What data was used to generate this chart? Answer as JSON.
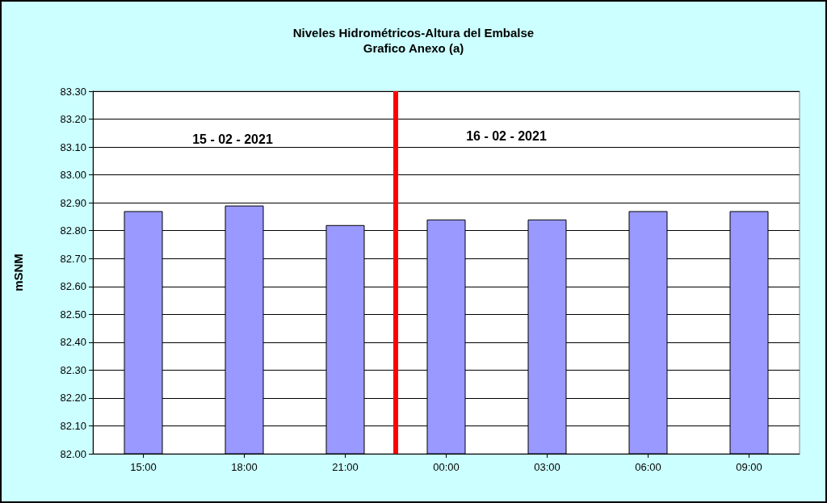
{
  "chart_data": {
    "type": "bar",
    "title": "Niveles Hidrométricos-Altura del Embalse",
    "subtitle": "Grafico Anexo (a)",
    "ylabel": "mSNM",
    "x": [
      "2021-02-15T15:00",
      "2021-02-15T18:00",
      "2021-02-15T21:00",
      "2021-02-16T00:00",
      "2021-02-16T03:00",
      "2021-02-16T06:00",
      "2021-02-16T09:00"
    ],
    "values": [
      82.87,
      82.89,
      82.82,
      82.84,
      82.84,
      82.87,
      82.87
    ],
    "color": "#9999ff",
    "xlim": [
      "2021-02-15T13:30",
      "2021-02-16T10:30"
    ],
    "xticks": [
      {
        "value": "2021-02-15T15:00",
        "label": "15:00"
      },
      {
        "value": "2021-02-15T18:00",
        "label": "18:00"
      },
      {
        "value": "2021-02-15T21:00",
        "label": "21:00"
      },
      {
        "value": "2021-02-16T00:00",
        "label": "00:00"
      },
      {
        "value": "2021-02-16T03:00",
        "label": "03:00"
      },
      {
        "value": "2021-02-16T06:00",
        "label": "06:00"
      },
      {
        "value": "2021-02-16T09:00",
        "label": "09:00"
      }
    ],
    "ylim": [
      82.0,
      83.3
    ],
    "yticks": [
      {
        "value": 82.0,
        "label": "82.00"
      },
      {
        "value": 82.1,
        "label": "82.10"
      },
      {
        "value": 82.2,
        "label": "82.20"
      },
      {
        "value": 82.3,
        "label": "82.30"
      },
      {
        "value": 82.4,
        "label": "82.40"
      },
      {
        "value": 82.5,
        "label": "82.50"
      },
      {
        "value": 82.6,
        "label": "82.60"
      },
      {
        "value": 82.7,
        "label": "82.70"
      },
      {
        "value": 82.8,
        "label": "82.80"
      },
      {
        "value": 82.9,
        "label": "82.90"
      },
      {
        "value": 83.0,
        "label": "83.00"
      },
      {
        "value": 83.1,
        "label": "83.10"
      },
      {
        "value": 83.2,
        "label": "83.20"
      },
      {
        "value": 83.3,
        "label": "83.30"
      }
    ],
    "ref_lines": [
      {
        "axis": "x",
        "value": "2021-02-15T22:30",
        "color": "#ff0000"
      }
    ],
    "annotations": [
      "15 - 02 - 2021",
      "16 - 02 - 2021"
    ],
    "grid": "y"
  }
}
